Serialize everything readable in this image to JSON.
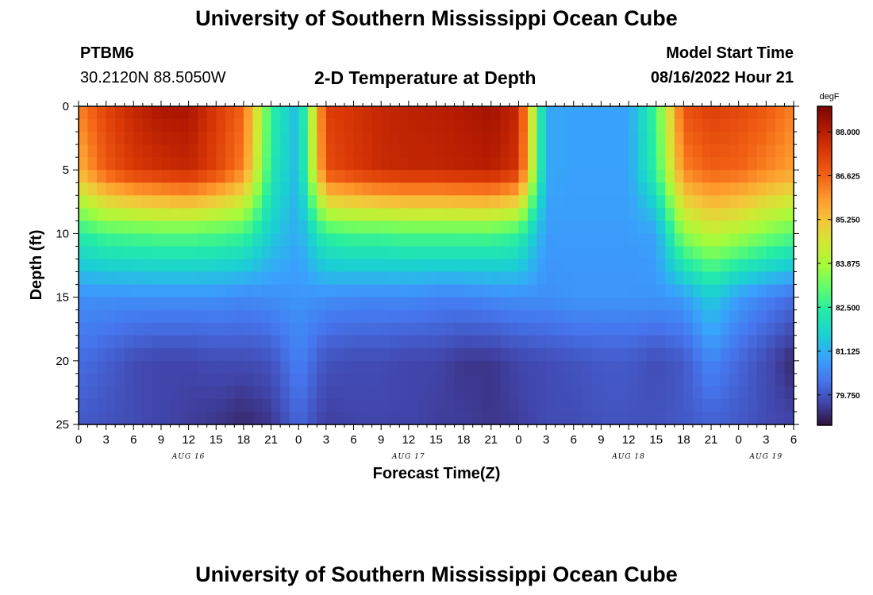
{
  "header": {
    "title": "University of Southern Mississippi Ocean Cube",
    "station": "PTBM6",
    "location": "30.2120N  88.5050W",
    "plot_title": "2-D Temperature at Depth",
    "model_label": "Model Start Time",
    "model_time": "08/16/2022 Hour 21"
  },
  "footer": {
    "title": "University of Southern Mississippi Ocean Cube"
  },
  "chart_data": {
    "type": "heatmap",
    "title": "2-D Temperature at Depth",
    "xlabel": "Forecast Time(Z)",
    "ylabel": "Depth (ft)",
    "x_tick_labels": [
      "0",
      "3",
      "6",
      "9",
      "12",
      "15",
      "18",
      "21",
      "0",
      "3",
      "6",
      "9",
      "12",
      "15",
      "18",
      "21",
      "0",
      "3",
      "6",
      "9",
      "12",
      "15",
      "18",
      "21",
      "0",
      "3",
      "6"
    ],
    "day_labels": [
      {
        "label": "AUG 16",
        "at_tick": 4
      },
      {
        "label": "AUG 17",
        "at_tick": 12
      },
      {
        "label": "AUG 18",
        "at_tick": 20
      },
      {
        "label": "AUG 19",
        "at_tick": 25
      }
    ],
    "xlim_hours": [
      0,
      78
    ],
    "y_ticks": [
      0,
      5,
      10,
      15,
      20,
      25
    ],
    "ylim": [
      0,
      25
    ],
    "y_inverted": true,
    "colorbar": {
      "unit": "degF",
      "ticks": [
        "88.000",
        "86.625",
        "85.250",
        "83.875",
        "82.500",
        "81.125",
        "79.750"
      ],
      "range": [
        78.8,
        88.8
      ]
    },
    "grid": {
      "depths_ft": [
        0,
        5,
        10,
        15,
        20,
        25
      ],
      "hours": [
        0,
        3,
        6,
        9,
        12,
        15,
        18,
        21,
        24,
        27,
        30,
        33,
        36,
        39,
        42,
        45,
        48,
        51,
        54,
        57,
        60,
        63,
        66,
        69,
        72,
        75,
        78
      ],
      "values_degF": [
        [
          86.2,
          87.2,
          87.8,
          88.2,
          88.2,
          87.4,
          86.6,
          82.5,
          81.2,
          87.3,
          87.5,
          87.8,
          87.9,
          88.0,
          88.1,
          88.3,
          87.8,
          81.0,
          80.9,
          80.9,
          80.9,
          82.8,
          86.9,
          87.3,
          87.1,
          86.8,
          86.2
        ],
        [
          85.5,
          86.8,
          87.4,
          87.6,
          87.8,
          87.2,
          86.2,
          82.3,
          81.2,
          87.0,
          87.4,
          87.7,
          87.8,
          87.8,
          87.9,
          88.0,
          87.5,
          81.0,
          80.9,
          80.9,
          80.9,
          82.6,
          86.2,
          86.7,
          86.6,
          86.2,
          85.8
        ],
        [
          82.4,
          82.8,
          82.9,
          83.0,
          83.0,
          82.9,
          82.7,
          81.6,
          81.0,
          82.6,
          82.8,
          82.8,
          82.9,
          82.9,
          82.9,
          82.9,
          82.6,
          80.8,
          80.8,
          80.8,
          80.8,
          80.9,
          83.6,
          84.2,
          83.9,
          83.4,
          83.0
        ],
        [
          80.6,
          80.6,
          80.6,
          80.6,
          80.6,
          80.6,
          80.5,
          80.6,
          80.7,
          80.6,
          80.5,
          80.5,
          80.5,
          80.4,
          80.4,
          80.5,
          80.6,
          80.6,
          80.7,
          80.7,
          80.7,
          80.7,
          80.8,
          81.6,
          80.8,
          80.4,
          80.1
        ],
        [
          80.1,
          79.9,
          79.6,
          79.5,
          79.5,
          79.6,
          79.6,
          79.7,
          80.4,
          79.7,
          79.6,
          79.6,
          79.5,
          79.5,
          79.3,
          79.3,
          79.5,
          79.6,
          79.7,
          79.8,
          79.8,
          79.6,
          79.8,
          80.5,
          80.0,
          79.6,
          79.1
        ],
        [
          79.8,
          79.7,
          79.6,
          79.5,
          79.4,
          79.3,
          79.1,
          79.3,
          80.0,
          79.4,
          79.5,
          79.5,
          79.5,
          79.4,
          79.4,
          79.3,
          79.4,
          79.6,
          79.6,
          79.7,
          79.7,
          79.7,
          79.8,
          79.9,
          79.8,
          79.6,
          79.5
        ]
      ]
    }
  }
}
